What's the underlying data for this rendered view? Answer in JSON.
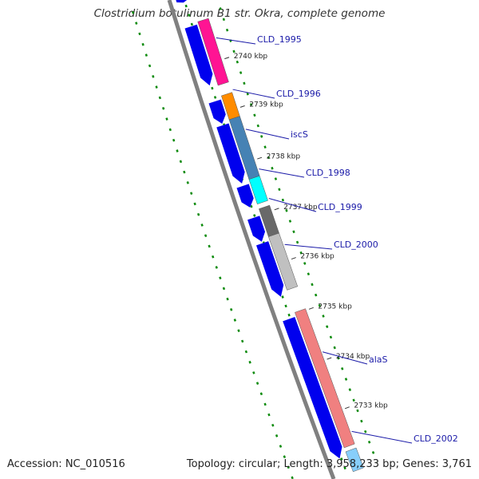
{
  "title": "Clostridium botulinum B1 str. Okra, complete genome",
  "footer": {
    "accession": "Accession: NC_010516",
    "topology": "Topology: circular; Length: 3,958,233 bp; Genes: 3,761"
  },
  "colors": {
    "backbone": "#808080",
    "cds_forward": "#0000ee",
    "gc_skew_dots": "#0a8a0a",
    "label_line": "#1a1aa8"
  },
  "kbp_ticks": [
    "2740 kbp",
    "2739 kbp",
    "2738 kbp",
    "2737 kbp",
    "2736 kbp",
    "2735 kbp",
    "2734 kbp",
    "2733 kbp"
  ],
  "genes": [
    {
      "name": "CLD_1995",
      "color": "#ff1493"
    },
    {
      "name": "CLD_1996",
      "color": "#ff8c00"
    },
    {
      "name": "iscS",
      "color": "#4682b4"
    },
    {
      "name": "CLD_1998",
      "color": "#00ffff"
    },
    {
      "name": "CLD_1999",
      "color": "#696969"
    },
    {
      "name": "CLD_2000",
      "color": "#c0c0c0"
    },
    {
      "name": "alaS",
      "color": "#f08080"
    },
    {
      "name": "CLD_2002",
      "color": "#87cefa"
    }
  ]
}
